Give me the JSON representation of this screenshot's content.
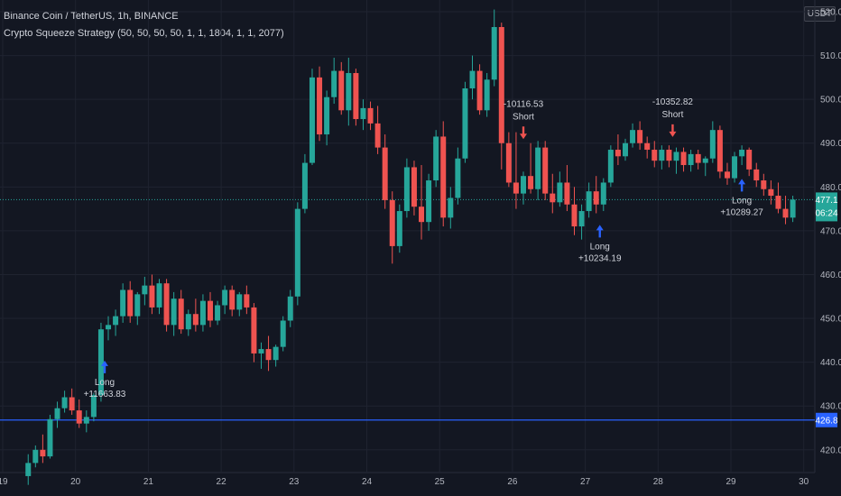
{
  "header": {
    "symbol_line": "Binance Coin / TetherUS, 1h, BINANCE",
    "strategy_line": "Crypto Squeeze Strategy (50, 50, 50, 50, 1, 1, 1804, 1, 1, 2077)",
    "unit_button": "USDT"
  },
  "colors": {
    "background": "#131722",
    "grid": "#1f2330",
    "up": "#26a69a",
    "down": "#ef5350",
    "long_arrow": "#2962ff",
    "short_arrow": "#ef5350",
    "price_line": "#26a69a",
    "horizontal_line": "#2962ff",
    "axis_text": "#b2b5be"
  },
  "chart_data": {
    "type": "candlestick",
    "symbol": "Binance Coin / TetherUS",
    "interval": "1h",
    "exchange": "BINANCE",
    "y_ticks": [
      420.0,
      430.0,
      440.0,
      450.0,
      460.0,
      470.0,
      480.0,
      490.0,
      500.0,
      510.0,
      520.0
    ],
    "x_ticks": [
      "19",
      "20",
      "21",
      "22",
      "23",
      "24",
      "25",
      "26",
      "27",
      "28",
      "29",
      "30"
    ],
    "ylim": [
      415.6,
      522.7
    ],
    "grid": true,
    "current_price": {
      "value": 477.1,
      "label": "477.1",
      "countdown": "06:24"
    },
    "horizontal_line": {
      "value": 426.8,
      "label": "426.8"
    },
    "candles": [
      {
        "day": 19.35,
        "o": 414.0,
        "h": 419.0,
        "l": 412.0,
        "c": 417.0
      },
      {
        "day": 19.45,
        "o": 417.0,
        "h": 421.0,
        "l": 416.0,
        "c": 420.0
      },
      {
        "day": 19.55,
        "o": 420.0,
        "h": 423.5,
        "l": 417.0,
        "c": 418.5
      },
      {
        "day": 19.65,
        "o": 418.5,
        "h": 428.0,
        "l": 418.0,
        "c": 427.0
      },
      {
        "day": 19.75,
        "o": 427.0,
        "h": 431.0,
        "l": 425.0,
        "c": 429.5
      },
      {
        "day": 19.85,
        "o": 429.5,
        "h": 433.5,
        "l": 428.5,
        "c": 432.0
      },
      {
        "day": 19.95,
        "o": 432.0,
        "h": 434.0,
        "l": 428.0,
        "c": 429.0
      },
      {
        "day": 20.05,
        "o": 429.0,
        "h": 431.5,
        "l": 425.0,
        "c": 426.0
      },
      {
        "day": 20.15,
        "o": 426.0,
        "h": 429.0,
        "l": 424.0,
        "c": 427.5
      },
      {
        "day": 20.25,
        "o": 427.5,
        "h": 433.0,
        "l": 426.5,
        "c": 432.5
      },
      {
        "day": 20.35,
        "o": 432.5,
        "h": 449.0,
        "l": 431.0,
        "c": 447.5
      },
      {
        "day": 20.45,
        "o": 447.5,
        "h": 450.5,
        "l": 445.0,
        "c": 448.5
      },
      {
        "day": 20.55,
        "o": 448.5,
        "h": 452.0,
        "l": 446.0,
        "c": 450.5
      },
      {
        "day": 20.65,
        "o": 450.5,
        "h": 458.0,
        "l": 449.0,
        "c": 456.5
      },
      {
        "day": 20.75,
        "o": 456.5,
        "h": 458.5,
        "l": 449.0,
        "c": 450.5
      },
      {
        "day": 20.85,
        "o": 450.5,
        "h": 456.0,
        "l": 448.5,
        "c": 455.5
      },
      {
        "day": 20.95,
        "o": 455.5,
        "h": 459.5,
        "l": 453.0,
        "c": 457.5
      },
      {
        "day": 21.05,
        "o": 457.5,
        "h": 460.0,
        "l": 451.0,
        "c": 452.5
      },
      {
        "day": 21.15,
        "o": 452.5,
        "h": 459.0,
        "l": 451.0,
        "c": 458.0
      },
      {
        "day": 21.25,
        "o": 458.0,
        "h": 459.0,
        "l": 447.0,
        "c": 448.5
      },
      {
        "day": 21.35,
        "o": 448.5,
        "h": 456.0,
        "l": 446.0,
        "c": 454.5
      },
      {
        "day": 21.45,
        "o": 454.5,
        "h": 456.5,
        "l": 446.5,
        "c": 447.5
      },
      {
        "day": 21.55,
        "o": 447.5,
        "h": 452.0,
        "l": 446.0,
        "c": 451.0
      },
      {
        "day": 21.65,
        "o": 451.0,
        "h": 454.5,
        "l": 447.0,
        "c": 448.5
      },
      {
        "day": 21.75,
        "o": 448.5,
        "h": 455.5,
        "l": 447.0,
        "c": 454.0
      },
      {
        "day": 21.85,
        "o": 454.0,
        "h": 456.0,
        "l": 448.0,
        "c": 449.5
      },
      {
        "day": 21.95,
        "o": 449.5,
        "h": 454.0,
        "l": 448.5,
        "c": 453.0
      },
      {
        "day": 22.05,
        "o": 453.0,
        "h": 457.5,
        "l": 451.0,
        "c": 456.5
      },
      {
        "day": 22.15,
        "o": 456.5,
        "h": 457.5,
        "l": 450.5,
        "c": 452.0
      },
      {
        "day": 22.25,
        "o": 452.0,
        "h": 456.0,
        "l": 450.5,
        "c": 455.5
      },
      {
        "day": 22.35,
        "o": 455.5,
        "h": 457.5,
        "l": 451.0,
        "c": 452.5
      },
      {
        "day": 22.45,
        "o": 452.5,
        "h": 453.5,
        "l": 440.0,
        "c": 442.0
      },
      {
        "day": 22.55,
        "o": 442.0,
        "h": 444.5,
        "l": 438.5,
        "c": 443.0
      },
      {
        "day": 22.65,
        "o": 443.0,
        "h": 446.0,
        "l": 438.0,
        "c": 440.5
      },
      {
        "day": 22.75,
        "o": 440.5,
        "h": 444.0,
        "l": 439.0,
        "c": 443.5
      },
      {
        "day": 22.85,
        "o": 443.5,
        "h": 450.5,
        "l": 442.5,
        "c": 449.5
      },
      {
        "day": 22.95,
        "o": 449.5,
        "h": 456.5,
        "l": 448.0,
        "c": 455.0
      },
      {
        "day": 23.05,
        "o": 455.0,
        "h": 476.5,
        "l": 453.0,
        "c": 475.0
      },
      {
        "day": 23.15,
        "o": 475.0,
        "h": 487.5,
        "l": 474.0,
        "c": 485.5
      },
      {
        "day": 23.25,
        "o": 485.5,
        "h": 507.0,
        "l": 485.0,
        "c": 505.0
      },
      {
        "day": 23.35,
        "o": 505.0,
        "h": 507.5,
        "l": 490.5,
        "c": 492.0
      },
      {
        "day": 23.45,
        "o": 492.0,
        "h": 502.0,
        "l": 489.5,
        "c": 500.5
      },
      {
        "day": 23.55,
        "o": 500.5,
        "h": 509.5,
        "l": 499.0,
        "c": 506.5
      },
      {
        "day": 23.65,
        "o": 506.5,
        "h": 508.5,
        "l": 496.5,
        "c": 497.5
      },
      {
        "day": 23.75,
        "o": 497.5,
        "h": 509.5,
        "l": 494.0,
        "c": 506.0
      },
      {
        "day": 23.85,
        "o": 506.0,
        "h": 507.0,
        "l": 494.0,
        "c": 495.5
      },
      {
        "day": 23.95,
        "o": 495.5,
        "h": 500.0,
        "l": 493.0,
        "c": 498.0
      },
      {
        "day": 24.05,
        "o": 498.0,
        "h": 499.5,
        "l": 493.0,
        "c": 494.5
      },
      {
        "day": 24.15,
        "o": 494.5,
        "h": 498.5,
        "l": 487.5,
        "c": 489.0
      },
      {
        "day": 24.25,
        "o": 489.0,
        "h": 492.0,
        "l": 475.0,
        "c": 477.0
      },
      {
        "day": 24.35,
        "o": 477.0,
        "h": 479.0,
        "l": 462.5,
        "c": 466.5
      },
      {
        "day": 24.45,
        "o": 466.5,
        "h": 476.0,
        "l": 465.0,
        "c": 474.5
      },
      {
        "day": 24.55,
        "o": 474.5,
        "h": 486.5,
        "l": 473.0,
        "c": 484.5
      },
      {
        "day": 24.65,
        "o": 484.5,
        "h": 486.0,
        "l": 473.5,
        "c": 475.5
      },
      {
        "day": 24.75,
        "o": 475.5,
        "h": 485.0,
        "l": 468.0,
        "c": 472.0
      },
      {
        "day": 24.85,
        "o": 472.0,
        "h": 483.0,
        "l": 470.0,
        "c": 481.5
      },
      {
        "day": 24.95,
        "o": 481.5,
        "h": 493.0,
        "l": 480.0,
        "c": 491.5
      },
      {
        "day": 25.05,
        "o": 491.5,
        "h": 495.0,
        "l": 471.0,
        "c": 473.0
      },
      {
        "day": 25.15,
        "o": 473.0,
        "h": 480.0,
        "l": 470.5,
        "c": 477.5
      },
      {
        "day": 25.25,
        "o": 477.5,
        "h": 489.0,
        "l": 476.0,
        "c": 486.5
      },
      {
        "day": 25.35,
        "o": 486.5,
        "h": 504.0,
        "l": 485.5,
        "c": 502.5
      },
      {
        "day": 25.45,
        "o": 502.5,
        "h": 510.0,
        "l": 500.0,
        "c": 506.5
      },
      {
        "day": 25.55,
        "o": 506.5,
        "h": 508.0,
        "l": 496.5,
        "c": 497.5
      },
      {
        "day": 25.65,
        "o": 497.5,
        "h": 506.0,
        "l": 496.0,
        "c": 504.5
      },
      {
        "day": 25.75,
        "o": 504.5,
        "h": 520.5,
        "l": 503.0,
        "c": 516.5
      },
      {
        "day": 25.85,
        "o": 516.5,
        "h": 517.5,
        "l": 484.0,
        "c": 490.0
      },
      {
        "day": 25.95,
        "o": 490.0,
        "h": 492.5,
        "l": 480.0,
        "c": 481.0
      },
      {
        "day": 26.05,
        "o": 481.0,
        "h": 492.5,
        "l": 475.0,
        "c": 478.5
      },
      {
        "day": 26.15,
        "o": 478.5,
        "h": 483.5,
        "l": 476.0,
        "c": 482.5
      },
      {
        "day": 26.25,
        "o": 482.5,
        "h": 490.0,
        "l": 478.5,
        "c": 479.5
      },
      {
        "day": 26.35,
        "o": 479.5,
        "h": 490.5,
        "l": 477.0,
        "c": 489.0
      },
      {
        "day": 26.45,
        "o": 489.0,
        "h": 490.5,
        "l": 477.0,
        "c": 478.5
      },
      {
        "day": 26.55,
        "o": 478.5,
        "h": 483.0,
        "l": 474.0,
        "c": 476.5
      },
      {
        "day": 26.65,
        "o": 476.5,
        "h": 483.5,
        "l": 475.5,
        "c": 481.0
      },
      {
        "day": 26.75,
        "o": 481.0,
        "h": 485.0,
        "l": 474.5,
        "c": 476.0
      },
      {
        "day": 26.85,
        "o": 476.0,
        "h": 480.0,
        "l": 469.0,
        "c": 471.0
      },
      {
        "day": 26.95,
        "o": 471.0,
        "h": 476.0,
        "l": 468.0,
        "c": 474.5
      },
      {
        "day": 27.05,
        "o": 474.5,
        "h": 481.0,
        "l": 473.0,
        "c": 479.0
      },
      {
        "day": 27.15,
        "o": 479.0,
        "h": 482.5,
        "l": 474.0,
        "c": 476.0
      },
      {
        "day": 27.25,
        "o": 476.0,
        "h": 482.0,
        "l": 474.5,
        "c": 481.0
      },
      {
        "day": 27.35,
        "o": 481.0,
        "h": 489.5,
        "l": 480.0,
        "c": 488.5
      },
      {
        "day": 27.45,
        "o": 488.5,
        "h": 492.0,
        "l": 485.0,
        "c": 487.0
      },
      {
        "day": 27.55,
        "o": 487.0,
        "h": 491.0,
        "l": 486.0,
        "c": 490.0
      },
      {
        "day": 27.65,
        "o": 490.0,
        "h": 494.5,
        "l": 489.0,
        "c": 493.0
      },
      {
        "day": 27.75,
        "o": 493.0,
        "h": 495.0,
        "l": 488.5,
        "c": 490.0
      },
      {
        "day": 27.85,
        "o": 490.0,
        "h": 491.5,
        "l": 486.5,
        "c": 488.5
      },
      {
        "day": 27.95,
        "o": 488.5,
        "h": 490.5,
        "l": 484.5,
        "c": 486.0
      },
      {
        "day": 28.05,
        "o": 486.0,
        "h": 489.5,
        "l": 484.0,
        "c": 488.5
      },
      {
        "day": 28.15,
        "o": 488.5,
        "h": 489.5,
        "l": 484.5,
        "c": 486.0
      },
      {
        "day": 28.25,
        "o": 486.0,
        "h": 489.0,
        "l": 483.0,
        "c": 488.0
      },
      {
        "day": 28.35,
        "o": 488.0,
        "h": 489.0,
        "l": 483.5,
        "c": 485.0
      },
      {
        "day": 28.45,
        "o": 485.0,
        "h": 488.5,
        "l": 483.5,
        "c": 487.5
      },
      {
        "day": 28.55,
        "o": 487.5,
        "h": 488.5,
        "l": 484.0,
        "c": 485.5
      },
      {
        "day": 28.65,
        "o": 485.5,
        "h": 487.0,
        "l": 482.5,
        "c": 486.5
      },
      {
        "day": 28.75,
        "o": 486.5,
        "h": 495.0,
        "l": 485.5,
        "c": 493.0
      },
      {
        "day": 28.85,
        "o": 493.0,
        "h": 494.0,
        "l": 482.0,
        "c": 483.5
      },
      {
        "day": 28.95,
        "o": 483.5,
        "h": 485.5,
        "l": 480.5,
        "c": 482.0
      },
      {
        "day": 29.05,
        "o": 482.0,
        "h": 488.0,
        "l": 481.0,
        "c": 487.0
      },
      {
        "day": 29.15,
        "o": 487.0,
        "h": 489.5,
        "l": 485.0,
        "c": 488.5
      },
      {
        "day": 29.25,
        "o": 488.5,
        "h": 489.0,
        "l": 482.5,
        "c": 484.0
      },
      {
        "day": 29.35,
        "o": 484.0,
        "h": 485.5,
        "l": 480.0,
        "c": 481.5
      },
      {
        "day": 29.45,
        "o": 481.5,
        "h": 483.0,
        "l": 478.0,
        "c": 479.5
      },
      {
        "day": 29.55,
        "o": 479.5,
        "h": 481.5,
        "l": 476.0,
        "c": 478.0
      },
      {
        "day": 29.65,
        "o": 478.0,
        "h": 481.0,
        "l": 474.0,
        "c": 475.0
      },
      {
        "day": 29.75,
        "o": 475.0,
        "h": 478.0,
        "l": 471.5,
        "c": 473.0
      },
      {
        "day": 29.85,
        "o": 473.0,
        "h": 478.0,
        "l": 472.0,
        "c": 477.1
      }
    ],
    "trade_markers": [
      {
        "type": "long",
        "day": 20.4,
        "price": 442.0,
        "lines": [
          "Long",
          "+11663.83"
        ]
      },
      {
        "type": "short",
        "day": 26.15,
        "price": 490.5,
        "lines": [
          "-10116.53",
          "Short"
        ]
      },
      {
        "type": "long",
        "day": 27.2,
        "price": 473.0,
        "lines": [
          "Long",
          "+10234.19"
        ]
      },
      {
        "type": "short",
        "day": 28.2,
        "price": 491.0,
        "lines": [
          "-10352.82",
          "Short"
        ]
      },
      {
        "type": "long",
        "day": 29.15,
        "price": 483.5,
        "lines": [
          "Long",
          "+10289.27"
        ]
      }
    ]
  }
}
